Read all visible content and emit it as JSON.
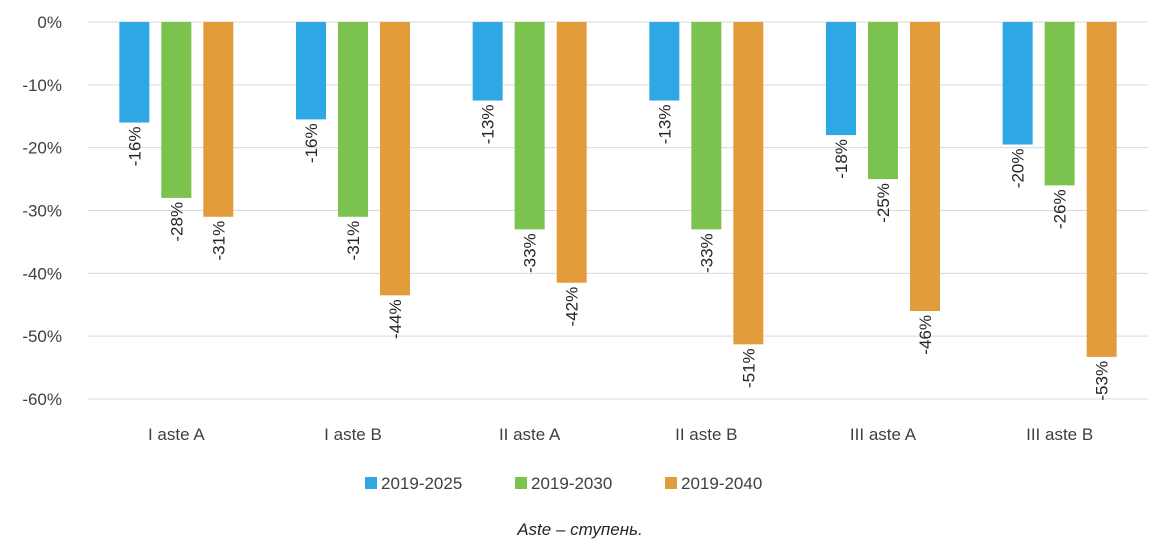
{
  "caption": "Aste – ступень.",
  "colors": {
    "series_1": "#2ea8e5",
    "series_2": "#7bc24f",
    "series_3": "#e39c3c",
    "grid": "#d9d9d9"
  },
  "chart_data": {
    "type": "bar",
    "orientation": "vertical",
    "title": "",
    "xlabel": "",
    "ylabel": "",
    "categories": [
      "I aste A",
      "I aste B",
      "II aste A",
      "II aste B",
      "III aste A",
      "III aste B"
    ],
    "ylim": [
      -60,
      0
    ],
    "yticks": [
      0,
      -10,
      -20,
      -30,
      -40,
      -50,
      -60
    ],
    "ytick_labels": [
      "0%",
      "-10%",
      "-20%",
      "-30%",
      "-40%",
      "-50%",
      "-60%"
    ],
    "grid": true,
    "legend": "bottom",
    "series": [
      {
        "name": "2019-2025",
        "color": "#2ea8e5",
        "values": [
          -16,
          -15.5,
          -12.5,
          -12.5,
          -18,
          -19.5
        ],
        "labels": [
          "-16%",
          "-16%",
          "-13%",
          "-13%",
          "-18%",
          "-20%"
        ]
      },
      {
        "name": "2019-2030",
        "color": "#7bc24f",
        "values": [
          -28,
          -31,
          -33,
          -33,
          -25,
          -26
        ],
        "labels": [
          "-28%",
          "-31%",
          "-33%",
          "-33%",
          "-25%",
          "-26%"
        ]
      },
      {
        "name": "2019-2040",
        "color": "#e39c3c",
        "values": [
          -31,
          -43.5,
          -41.5,
          -51.3,
          -46,
          -53.3
        ],
        "labels": [
          "-31%",
          "-44%",
          "-42%",
          "-51%",
          "-46%",
          "-53%"
        ]
      }
    ]
  }
}
